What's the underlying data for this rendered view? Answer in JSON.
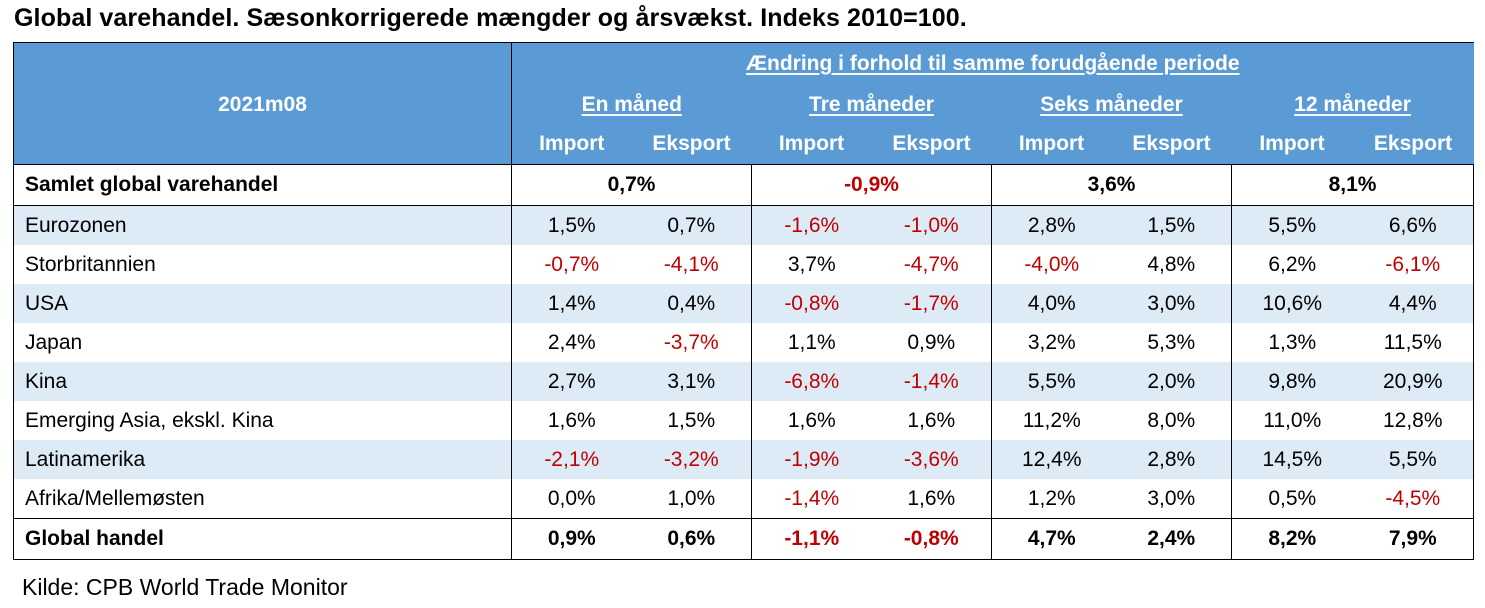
{
  "title": "Global varehandel. Sæsonkorrigerede mængder og årsvækst. Indeks 2010=100.",
  "period_label": "2021m08",
  "change_header": "Ændring i forhold til samme forudgående periode",
  "horizons": [
    "En måned",
    "Tre måneder",
    "Seks måneder",
    "12 måneder"
  ],
  "col_import": "Import",
  "col_export": "Eksport",
  "summary_row": {
    "label": "Samlet global varehandel",
    "values": [
      "0,7%",
      "-0,9%",
      "3,6%",
      "8,1%"
    ],
    "negative": [
      false,
      true,
      false,
      false
    ]
  },
  "rows": [
    {
      "label": "Eurozonen",
      "values": [
        "1,5%",
        "0,7%",
        "-1,6%",
        "-1,0%",
        "2,8%",
        "1,5%",
        "5,5%",
        "6,6%"
      ]
    },
    {
      "label": "Storbritannien",
      "values": [
        "-0,7%",
        "-4,1%",
        "3,7%",
        "-4,7%",
        "-4,0%",
        "4,8%",
        "6,2%",
        "-6,1%"
      ]
    },
    {
      "label": "USA",
      "values": [
        "1,4%",
        "0,4%",
        "-0,8%",
        "-1,7%",
        "4,0%",
        "3,0%",
        "10,6%",
        "4,4%"
      ]
    },
    {
      "label": "Japan",
      "values": [
        "2,4%",
        "-3,7%",
        "1,1%",
        "0,9%",
        "3,2%",
        "5,3%",
        "1,3%",
        "11,5%"
      ]
    },
    {
      "label": "Kina",
      "values": [
        "2,7%",
        "3,1%",
        "-6,8%",
        "-1,4%",
        "5,5%",
        "2,0%",
        "9,8%",
        "20,9%"
      ]
    },
    {
      "label": "Emerging Asia, ekskl. Kina",
      "values": [
        "1,6%",
        "1,5%",
        "1,6%",
        "1,6%",
        "11,2%",
        "8,0%",
        "11,0%",
        "12,8%"
      ]
    },
    {
      "label": "Latinamerika",
      "values": [
        "-2,1%",
        "-3,2%",
        "-1,9%",
        "-3,6%",
        "12,4%",
        "2,8%",
        "14,5%",
        "5,5%"
      ]
    },
    {
      "label": "Afrika/Mellemøsten",
      "values": [
        "0,0%",
        "1,0%",
        "-1,4%",
        "1,6%",
        "1,2%",
        "3,0%",
        "0,5%",
        "-4,5%"
      ]
    }
  ],
  "total_row": {
    "label": "Global handel",
    "values": [
      "0,9%",
      "0,6%",
      "-1,1%",
      "-0,8%",
      "4,7%",
      "2,4%",
      "8,2%",
      "7,9%"
    ]
  },
  "source": "Kilde: CPB World Trade Monitor",
  "colors": {
    "header_bg": "#5b9bd5",
    "stripe_bg": "#ddebf7",
    "negative_text": "#c00000"
  }
}
